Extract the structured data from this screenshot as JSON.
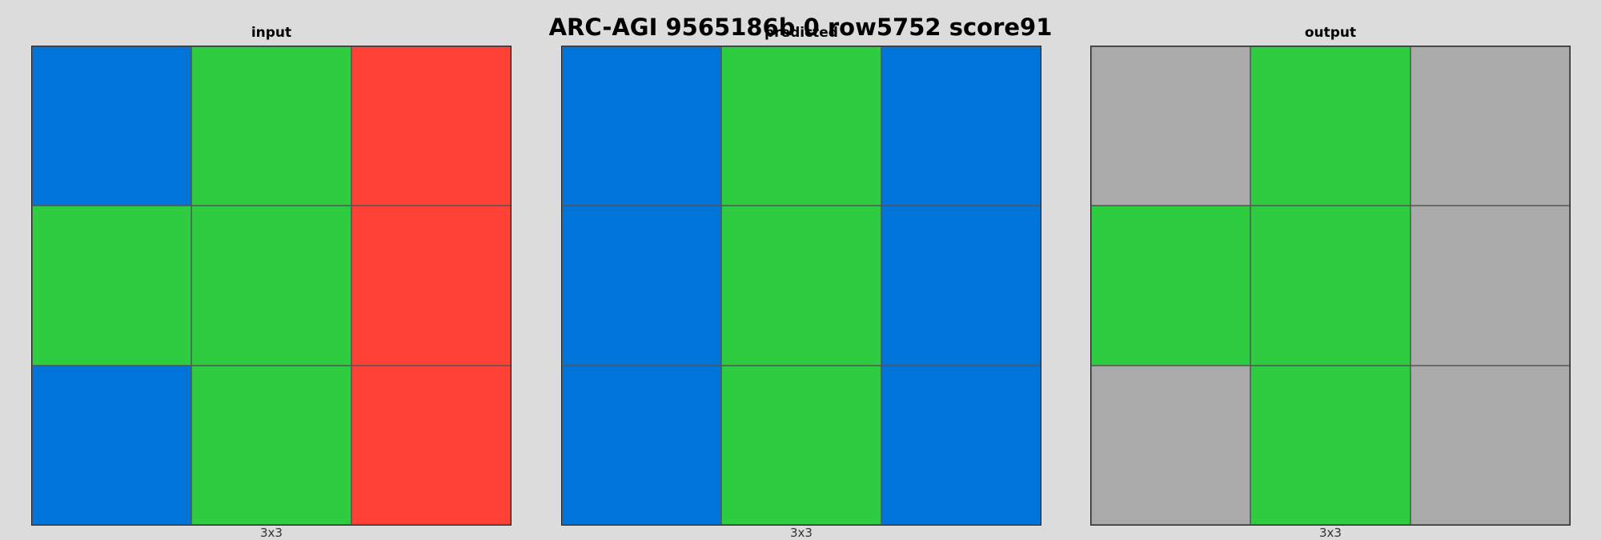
{
  "title": "ARC-AGI 9565186b 0 row5752 score91",
  "palette": {
    "blue": "#0074d9",
    "green": "#2ecc40",
    "red": "#ff4136",
    "gray": "#aaaaaa"
  },
  "panels": [
    {
      "title": "input",
      "dims": "3x3",
      "grid": [
        [
          "blue",
          "green",
          "red"
        ],
        [
          "green",
          "green",
          "red"
        ],
        [
          "blue",
          "green",
          "red"
        ]
      ]
    },
    {
      "title": "predicted",
      "dims": "3x3",
      "grid": [
        [
          "blue",
          "green",
          "blue"
        ],
        [
          "blue",
          "green",
          "blue"
        ],
        [
          "blue",
          "green",
          "blue"
        ]
      ]
    },
    {
      "title": "output",
      "dims": "3x3",
      "grid": [
        [
          "gray",
          "green",
          "gray"
        ],
        [
          "green",
          "green",
          "gray"
        ],
        [
          "gray",
          "green",
          "gray"
        ]
      ]
    }
  ]
}
